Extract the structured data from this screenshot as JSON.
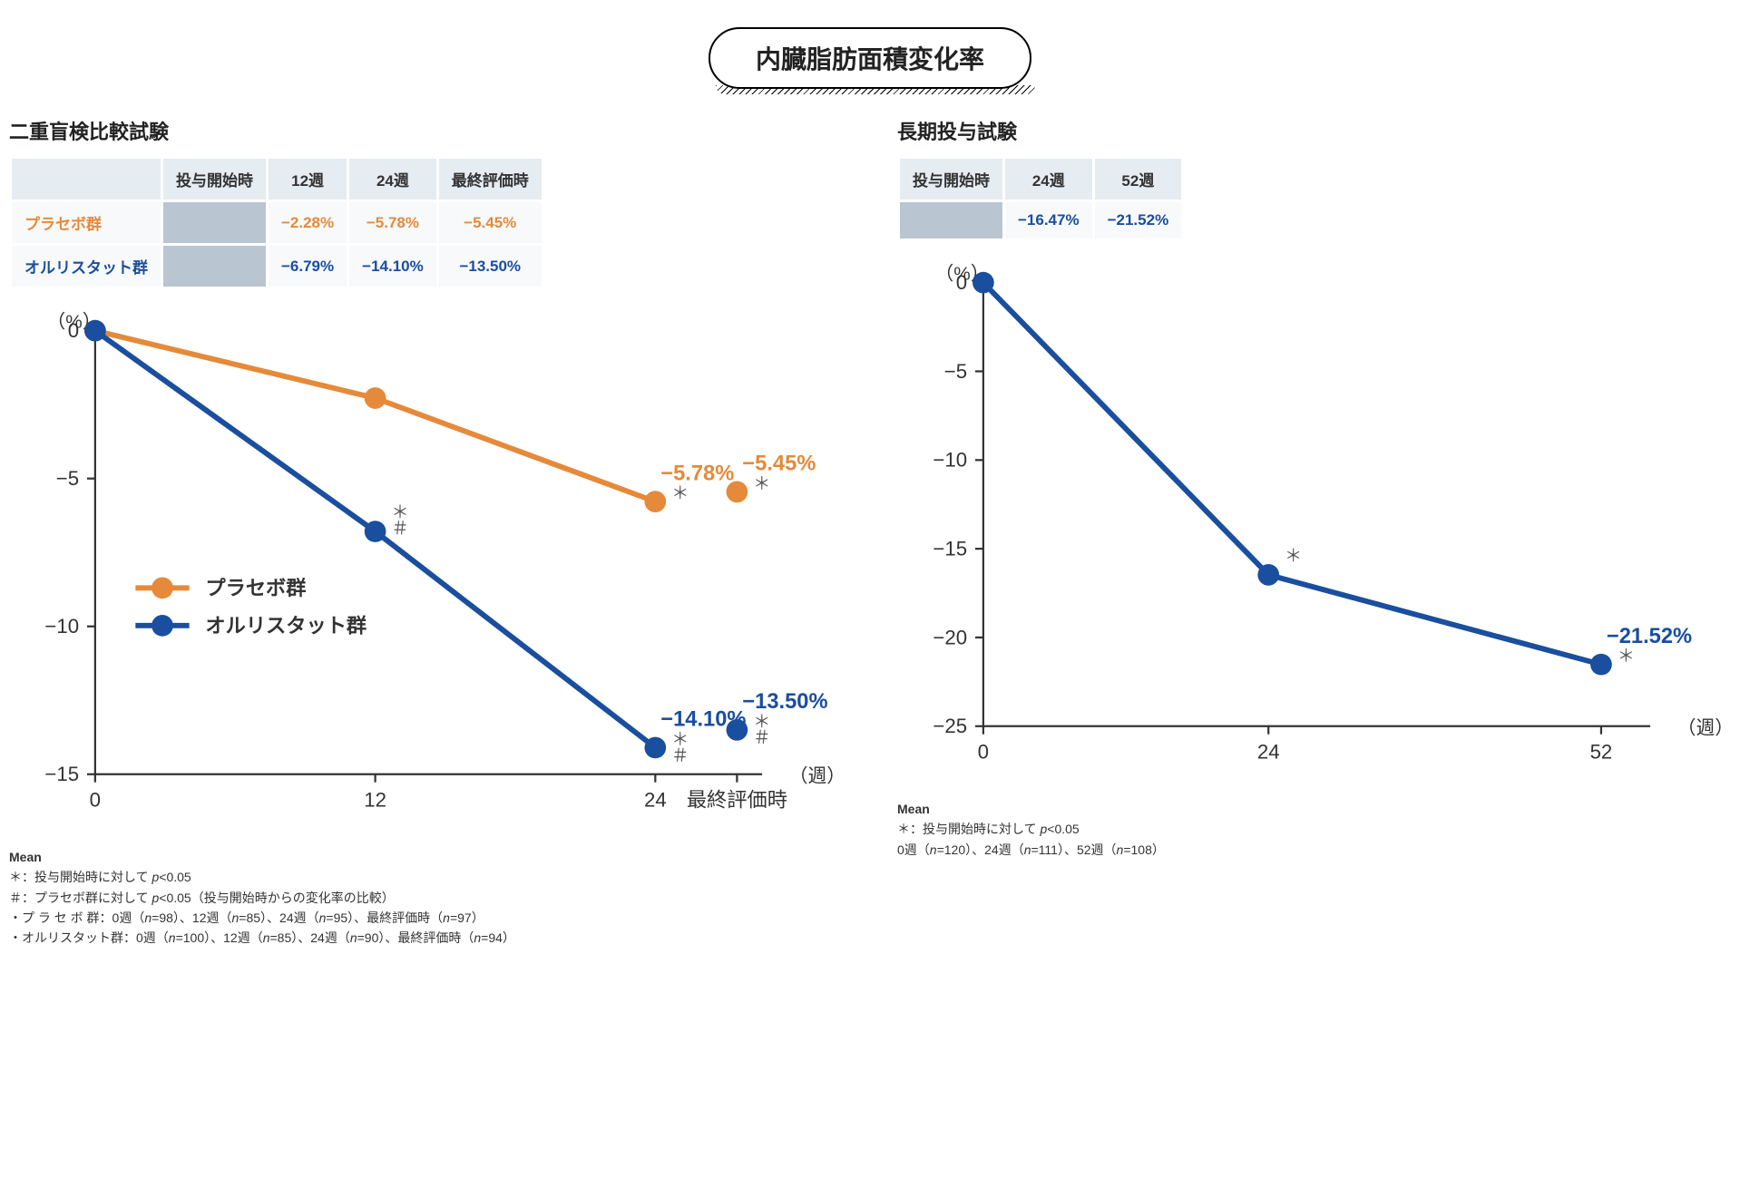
{
  "title": "内臓脂肪面積変化率",
  "colors": {
    "placebo": "#e58a3a",
    "orlistat": "#1a4e9e",
    "axis": "#333333",
    "tick_label": "#333333",
    "bg": "#ffffff",
    "table_header_bg": "#e5ecf2",
    "table_cell_bg": "#f7f9fb",
    "table_grey_bg": "#b9c5d1"
  },
  "left": {
    "title": "二重盲検比較試験",
    "table": {
      "columns": [
        "",
        "投与開始時",
        "12週",
        "24週",
        "最終評価時"
      ],
      "rows": [
        {
          "label": "プラセボ群",
          "cls": "placebo",
          "cells": [
            "",
            "−2.28%",
            "−5.78%",
            "−5.45%"
          ]
        },
        {
          "label": "オルリスタット群",
          "cls": "orlistat",
          "cells": [
            "",
            "−6.79%",
            "−14.10%",
            "−13.50%"
          ]
        }
      ],
      "grey_col_index": 1
    },
    "chart": {
      "type": "line",
      "y_label": "（%）",
      "x_label": "（週）",
      "ylim": [
        -15,
        0
      ],
      "ytick_step": 5,
      "x_categories": [
        "0",
        "12",
        "24",
        "最終評価時"
      ],
      "x_positions": [
        0,
        12,
        24,
        27.5
      ],
      "xlim": [
        0,
        28
      ],
      "marker_radius": 8,
      "line_width": 4,
      "legend": {
        "items": [
          {
            "label": "プラセボ群",
            "color_key": "placebo"
          },
          {
            "label": "オルリスタット群",
            "color_key": "orlistat"
          }
        ]
      },
      "series": [
        {
          "name": "プラセボ群",
          "color_key": "placebo",
          "points": [
            {
              "x": 0,
              "y": 0
            },
            {
              "x": 12,
              "y": -2.28
            },
            {
              "x": 24,
              "y": -5.78,
              "label": "−5.78%",
              "mark_star": true
            },
            {
              "x": 27.5,
              "y": -5.45,
              "label": "−5.45%",
              "mark_star": true,
              "detached": true
            }
          ]
        },
        {
          "name": "オルリスタット群",
          "color_key": "orlistat",
          "points": [
            {
              "x": 0,
              "y": 0
            },
            {
              "x": 12,
              "y": -6.79,
              "mark_star": true,
              "mark_hash": true
            },
            {
              "x": 24,
              "y": -14.1,
              "label": "−14.10%",
              "mark_star": true,
              "mark_hash": true
            },
            {
              "x": 27.5,
              "y": -13.5,
              "label": "−13.50%",
              "mark_star": true,
              "mark_hash": true,
              "detached": true
            }
          ]
        }
      ]
    },
    "footnotes": [
      "Mean",
      "＊：投与開始時に対して p<0.05",
      "＃：プラセボ群に対して p<0.05（投与開始時からの変化率の比較）",
      "・プ ラ セ ボ 群：0週（n=98）、12週（n=85）、24週（n=95）、最終評価時（n=97）",
      "・オルリスタット群：0週（n=100）、12週（n=85）、24週（n=90）、最終評価時（n=94）"
    ]
  },
  "right": {
    "title": "長期投与試験",
    "table": {
      "columns": [
        "投与開始時",
        "24週",
        "52週"
      ],
      "rows": [
        {
          "cls": "orlistat",
          "cells": [
            "",
            "−16.47%",
            "−21.52%"
          ]
        }
      ],
      "grey_col_index": 0
    },
    "chart": {
      "type": "line",
      "y_label": "（%）",
      "x_label": "（週）",
      "ylim": [
        -25,
        0
      ],
      "ytick_step": 5,
      "x_categories": [
        "0",
        "24",
        "52"
      ],
      "x_positions": [
        0,
        24,
        52
      ],
      "xlim": [
        0,
        55
      ],
      "marker_radius": 8,
      "line_width": 4,
      "series": [
        {
          "name": "オルリスタット群",
          "color_key": "orlistat",
          "points": [
            {
              "x": 0,
              "y": 0
            },
            {
              "x": 24,
              "y": -16.47,
              "mark_star": true
            },
            {
              "x": 52,
              "y": -21.52,
              "label": "−21.52%",
              "mark_star": true
            }
          ]
        }
      ]
    },
    "footnotes": [
      "Mean",
      "＊：投与開始時に対して p<0.05",
      "0週（n=120）、24週（n=111）、52週（n=108）"
    ]
  }
}
